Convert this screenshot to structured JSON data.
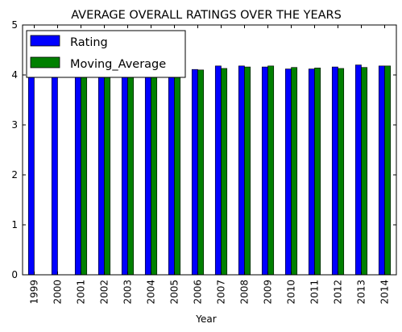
{
  "chart_data": {
    "type": "bar",
    "title": "AVERAGE OVERALL RATINGS OVER THE YEARS",
    "xlabel": "Year",
    "ylabel": "",
    "ylim": [
      0,
      5
    ],
    "yticks": [
      "0",
      "1",
      "2",
      "3",
      "4",
      "5"
    ],
    "categories": [
      "1999",
      "2000",
      "2001",
      "2002",
      "2003",
      "2004",
      "2005",
      "2006",
      "2007",
      "2008",
      "2009",
      "2010",
      "2011",
      "2012",
      "2013",
      "2014"
    ],
    "series": [
      {
        "name": "Rating",
        "color": "#0000ff",
        "values": [
          4.75,
          4.0,
          4.25,
          4.1,
          4.05,
          4.05,
          4.05,
          4.11,
          4.18,
          4.18,
          4.16,
          4.12,
          4.12,
          4.16,
          4.2,
          4.18
        ]
      },
      {
        "name": "Moving_Average",
        "color": "#008000",
        "values": [
          0,
          0,
          4.3,
          4.12,
          4.13,
          4.07,
          4.05,
          4.1,
          4.13,
          4.16,
          4.18,
          4.15,
          4.14,
          4.13,
          4.15,
          4.18
        ]
      }
    ],
    "legend": {
      "position": "top-left",
      "entries": [
        "Rating",
        "Moving_Average"
      ]
    },
    "grid": false
  }
}
